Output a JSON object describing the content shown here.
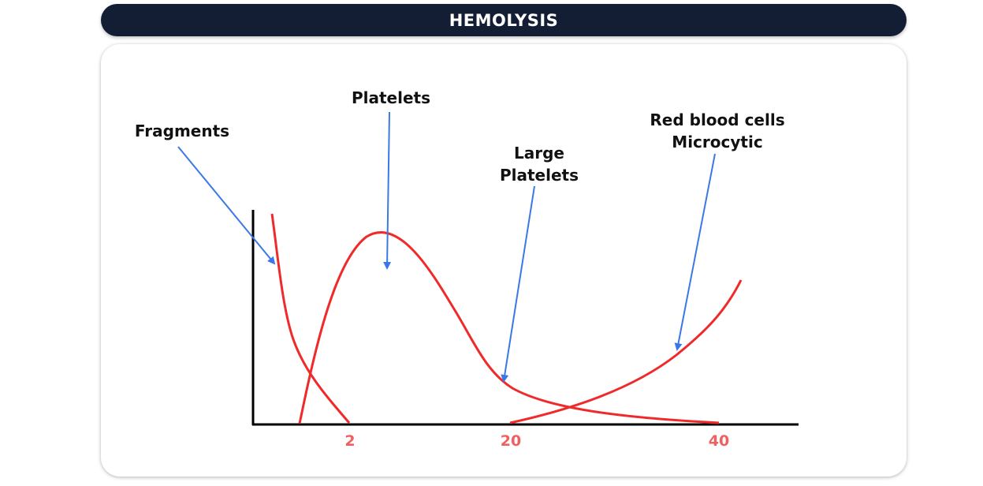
{
  "title": "HEMOLYSIS",
  "labels": {
    "fragments": "Fragments",
    "platelets": "Platelets",
    "large_platelets_line1": "Large",
    "large_platelets_line2": "Platelets",
    "rbc_line1": "Red blood cells",
    "rbc_line2": "Microcytic"
  },
  "x_ticks": [
    "2",
    "20",
    "40"
  ],
  "colors": {
    "title_bar": "#131e35",
    "curve": "#f02a2a",
    "arrow": "#3b78e7",
    "tick_text": "#f06060",
    "axis": "#000000"
  }
}
